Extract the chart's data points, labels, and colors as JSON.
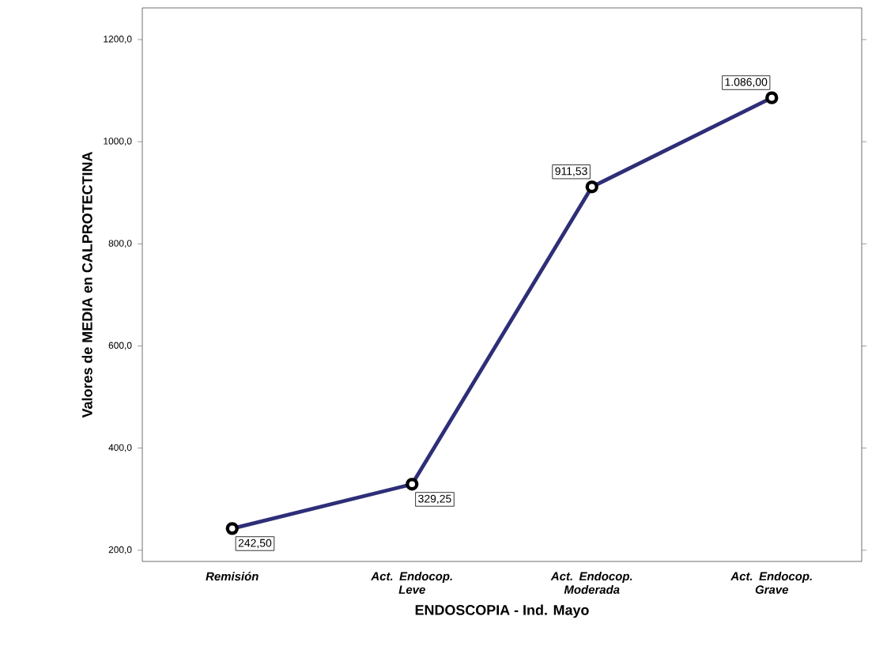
{
  "chart_data": {
    "type": "line",
    "xlabel": "ENDOSCOPIA - Ind. Mayo",
    "ylabel": "Valores de MEDIA en CALPROTECTINA",
    "categories": [
      "Remisión",
      "Act. Endocop. Leve",
      "Act. Endocop. Moderada",
      "Act. Endocop. Grave"
    ],
    "series": [
      {
        "color": "#2e2e78",
        "values": [
          242.5,
          329.25,
          911.53,
          1086.0
        ],
        "value_labels": [
          "242,50",
          "329,25",
          "911,53",
          "1.086,00"
        ]
      }
    ],
    "ylim": [
      178,
      1262
    ],
    "yticks": [
      {
        "value": 200,
        "label": "200,0"
      },
      {
        "value": 400,
        "label": "400,0"
      },
      {
        "value": 600,
        "label": "600,0"
      },
      {
        "value": 800,
        "label": "800,0"
      },
      {
        "value": 1000,
        "label": "1000,0"
      },
      {
        "value": 1200,
        "label": "1200,0"
      }
    ],
    "marker": "circle",
    "line_style": "solid",
    "grid": false
  }
}
